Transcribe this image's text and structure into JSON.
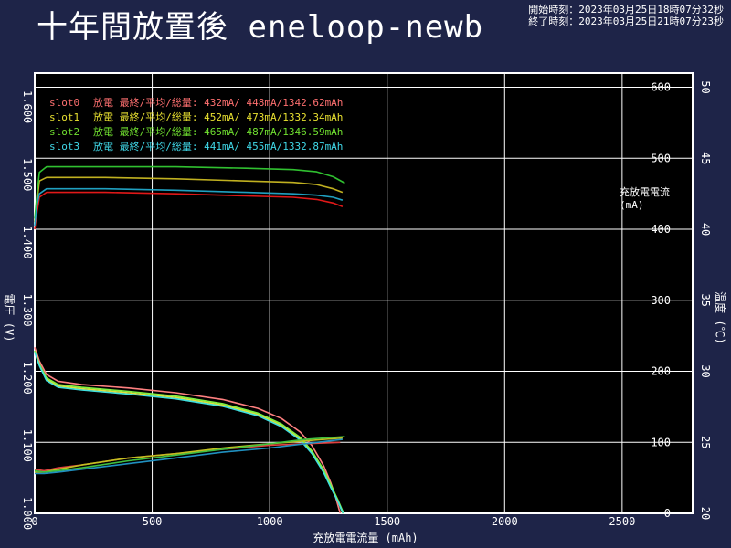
{
  "title": "十年間放置後 eneloop-newb",
  "start_time": "開始時刻：2023年03月25日18時07分32秒",
  "end_time": "終了時刻：2023年03月25日21時07分23秒",
  "chart_data": {
    "type": "line",
    "xlabel": "充放電電流量 (mAh)",
    "ylabel_left": "電圧 (V)",
    "ylabel_right_outer": "温度 (℃)",
    "ylabel_right_inner": [
      "充放電電流",
      "(mA)"
    ],
    "xlim": [
      0,
      2800
    ],
    "ylim_voltage": [
      1.0,
      1.65
    ],
    "ylim_current": [
      0,
      620
    ],
    "ylim_temp": [
      20,
      51
    ],
    "x_ticks": [
      0,
      500,
      1000,
      1500,
      2000,
      2500
    ],
    "voltage_ticks": [
      "1.000",
      "1.100",
      "1.200",
      "1.300",
      "1.400",
      "1.500",
      "1.600"
    ],
    "current_ticks": [
      0,
      100,
      200,
      300,
      400,
      500,
      600
    ],
    "temp_ticks": [
      20,
      25,
      30,
      35,
      40,
      45,
      50
    ],
    "grid": true,
    "legend_position": "top-left",
    "legend": [
      {
        "slot": "slot0",
        "text": "放電 最終/平均/総量:  432mA/ 448mA/1342.62mAh",
        "color": "#ff7070"
      },
      {
        "slot": "slot1",
        "text": "放電 最終/平均/総量:  452mA/ 473mA/1332.34mAh",
        "color": "#e8e030"
      },
      {
        "slot": "slot2",
        "text": "放電 最終/平均/総量:  465mA/ 487mA/1346.59mAh",
        "color": "#70e030"
      },
      {
        "slot": "slot3",
        "text": "放電 最終/平均/総量:  441mA/ 455mA/1332.87mAh",
        "color": "#40d8e8"
      }
    ],
    "series": [
      {
        "color": "#e01818",
        "kind": "current",
        "points": [
          [
            0,
            400
          ],
          [
            10,
            425
          ],
          [
            20,
            445
          ],
          [
            50,
            452
          ],
          [
            300,
            452
          ],
          [
            600,
            450
          ],
          [
            900,
            447
          ],
          [
            1100,
            445
          ],
          [
            1200,
            442
          ],
          [
            1270,
            437
          ],
          [
            1310,
            432
          ]
        ]
      },
      {
        "color": "#c0b020",
        "kind": "current",
        "points": [
          [
            0,
            410
          ],
          [
            10,
            440
          ],
          [
            20,
            468
          ],
          [
            50,
            473
          ],
          [
            300,
            473
          ],
          [
            600,
            471
          ],
          [
            900,
            468
          ],
          [
            1100,
            466
          ],
          [
            1200,
            463
          ],
          [
            1270,
            457
          ],
          [
            1310,
            452
          ]
        ]
      },
      {
        "color": "#30c030",
        "kind": "current",
        "points": [
          [
            0,
            415
          ],
          [
            10,
            450
          ],
          [
            20,
            480
          ],
          [
            50,
            488
          ],
          [
            300,
            488
          ],
          [
            600,
            488
          ],
          [
            900,
            486
          ],
          [
            1100,
            484
          ],
          [
            1200,
            481
          ],
          [
            1270,
            474
          ],
          [
            1320,
            465
          ]
        ]
      },
      {
        "color": "#20a0c0",
        "kind": "current",
        "points": [
          [
            0,
            405
          ],
          [
            10,
            435
          ],
          [
            20,
            450
          ],
          [
            50,
            457
          ],
          [
            300,
            457
          ],
          [
            600,
            455
          ],
          [
            900,
            452
          ],
          [
            1100,
            450
          ],
          [
            1200,
            448
          ],
          [
            1270,
            445
          ],
          [
            1310,
            441
          ]
        ]
      },
      {
        "color": "#ff8080",
        "kind": "voltage",
        "points": [
          [
            0,
            1.245
          ],
          [
            20,
            1.225
          ],
          [
            50,
            1.205
          ],
          [
            100,
            1.195
          ],
          [
            200,
            1.19
          ],
          [
            400,
            1.185
          ],
          [
            600,
            1.178
          ],
          [
            800,
            1.168
          ],
          [
            950,
            1.155
          ],
          [
            1050,
            1.14
          ],
          [
            1130,
            1.12
          ],
          [
            1180,
            1.1
          ],
          [
            1230,
            1.07
          ],
          [
            1260,
            1.045
          ],
          [
            1280,
            1.025
          ],
          [
            1300,
            1.0
          ]
        ]
      },
      {
        "color": "#e0e040",
        "kind": "voltage",
        "points": [
          [
            0,
            1.24
          ],
          [
            20,
            1.22
          ],
          [
            50,
            1.198
          ],
          [
            100,
            1.188
          ],
          [
            200,
            1.184
          ],
          [
            400,
            1.178
          ],
          [
            600,
            1.171
          ],
          [
            800,
            1.16
          ],
          [
            950,
            1.146
          ],
          [
            1050,
            1.13
          ],
          [
            1130,
            1.11
          ],
          [
            1180,
            1.09
          ],
          [
            1230,
            1.062
          ],
          [
            1260,
            1.04
          ],
          [
            1290,
            1.02
          ],
          [
            1310,
            1.0
          ]
        ]
      },
      {
        "color": "#80f040",
        "kind": "voltage",
        "points": [
          [
            0,
            1.24
          ],
          [
            20,
            1.22
          ],
          [
            50,
            1.2
          ],
          [
            100,
            1.19
          ],
          [
            200,
            1.186
          ],
          [
            400,
            1.18
          ],
          [
            600,
            1.173
          ],
          [
            800,
            1.162
          ],
          [
            950,
            1.148
          ],
          [
            1050,
            1.132
          ],
          [
            1130,
            1.112
          ],
          [
            1180,
            1.092
          ],
          [
            1230,
            1.064
          ],
          [
            1260,
            1.042
          ],
          [
            1290,
            1.02
          ],
          [
            1315,
            1.0
          ]
        ]
      },
      {
        "color": "#40e0e0",
        "kind": "voltage",
        "points": [
          [
            0,
            1.238
          ],
          [
            20,
            1.218
          ],
          [
            50,
            1.196
          ],
          [
            100,
            1.186
          ],
          [
            200,
            1.182
          ],
          [
            400,
            1.176
          ],
          [
            600,
            1.169
          ],
          [
            800,
            1.158
          ],
          [
            950,
            1.144
          ],
          [
            1050,
            1.128
          ],
          [
            1130,
            1.108
          ],
          [
            1180,
            1.088
          ],
          [
            1230,
            1.06
          ],
          [
            1260,
            1.038
          ],
          [
            1290,
            1.018
          ],
          [
            1312,
            1.0
          ]
        ]
      },
      {
        "color": "#e04040",
        "kind": "temp",
        "points": [
          [
            0,
            23.1
          ],
          [
            40,
            23.0
          ],
          [
            100,
            23.2
          ],
          [
            200,
            23.4
          ],
          [
            400,
            23.9
          ],
          [
            600,
            24.2
          ],
          [
            800,
            24.5
          ],
          [
            1000,
            24.8
          ],
          [
            1150,
            24.9
          ],
          [
            1300,
            25.0
          ]
        ]
      },
      {
        "color": "#c0c020",
        "kind": "temp",
        "points": [
          [
            0,
            22.9
          ],
          [
            40,
            22.9
          ],
          [
            100,
            23.1
          ],
          [
            200,
            23.4
          ],
          [
            400,
            23.9
          ],
          [
            600,
            24.2
          ],
          [
            800,
            24.6
          ],
          [
            1000,
            24.9
          ],
          [
            1150,
            25.1
          ],
          [
            1310,
            25.3
          ]
        ]
      },
      {
        "color": "#40c040",
        "kind": "temp",
        "points": [
          [
            0,
            23.0
          ],
          [
            40,
            22.9
          ],
          [
            100,
            23.0
          ],
          [
            200,
            23.2
          ],
          [
            400,
            23.7
          ],
          [
            600,
            24.1
          ],
          [
            800,
            24.5
          ],
          [
            1000,
            24.9
          ],
          [
            1150,
            25.2
          ],
          [
            1320,
            25.4
          ]
        ]
      },
      {
        "color": "#2090c0",
        "kind": "temp",
        "points": [
          [
            0,
            22.8
          ],
          [
            40,
            22.8
          ],
          [
            100,
            22.9
          ],
          [
            200,
            23.1
          ],
          [
            400,
            23.5
          ],
          [
            600,
            23.9
          ],
          [
            800,
            24.3
          ],
          [
            1000,
            24.6
          ],
          [
            1150,
            24.9
          ],
          [
            1310,
            25.2
          ]
        ]
      }
    ]
  }
}
